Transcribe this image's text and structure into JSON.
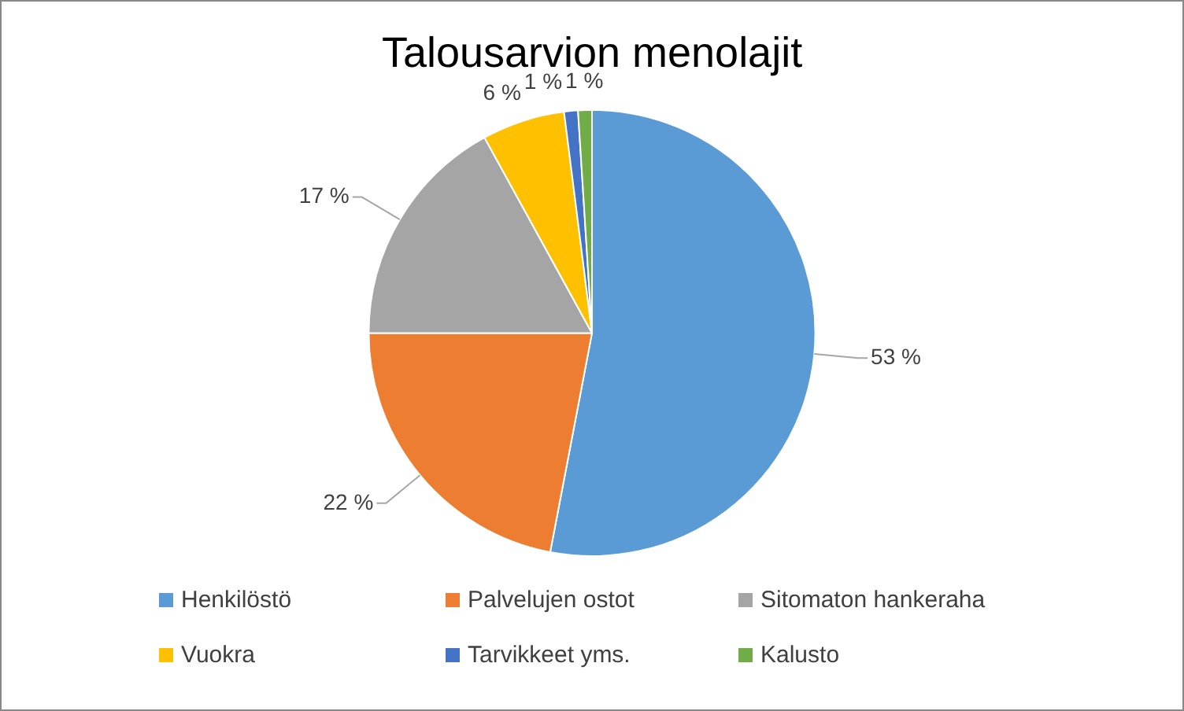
{
  "chart_data": {
    "type": "pie",
    "title": "Talousarvion menolajit",
    "categories": [
      "Henkilöstö",
      "Palvelujen ostot",
      "Sitomaton hankeraha",
      "Vuokra",
      "Tarvikkeet yms.",
      "Kalusto"
    ],
    "values": [
      53,
      22,
      17,
      6,
      1,
      1
    ],
    "colors": [
      "#5b9bd5",
      "#ed7d31",
      "#a5a5a5",
      "#ffc000",
      "#4472c4",
      "#70ad47"
    ],
    "value_labels": [
      "53 %",
      "22 %",
      "17 %",
      "6 %",
      "1 %",
      "1 %"
    ],
    "legend": "bottom"
  }
}
